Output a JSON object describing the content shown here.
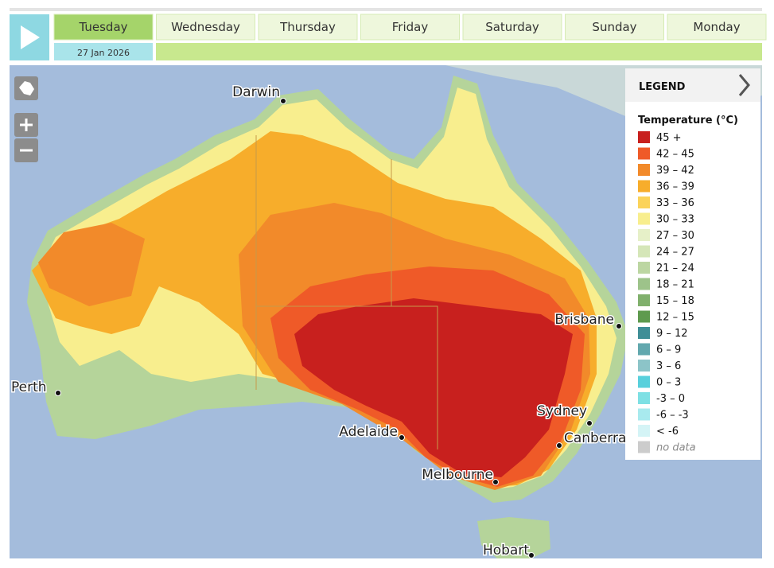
{
  "header": {
    "days": [
      "Tuesday",
      "Wednesday",
      "Thursday",
      "Friday",
      "Saturday",
      "Sunday",
      "Monday"
    ],
    "date": "27 Jan 2026"
  },
  "map": {
    "cities": [
      "Darwin",
      "Brisbane",
      "Perth",
      "Adelaide",
      "Sydney",
      "Canberra",
      "Melbourne",
      "Hobart"
    ]
  },
  "legend": {
    "heading": "LEGEND",
    "title": "Temperature (°C)",
    "items": [
      {
        "label": "45 +",
        "color": "#c8201e"
      },
      {
        "label": "42 – 45",
        "color": "#ef5a28"
      },
      {
        "label": "39 – 42",
        "color": "#f28a2a"
      },
      {
        "label": "36 – 39",
        "color": "#f7ad2b"
      },
      {
        "label": "33 – 36",
        "color": "#fbd35a"
      },
      {
        "label": "30 – 33",
        "color": "#f8ee8e"
      },
      {
        "label": "27 – 30",
        "color": "#e6f0c8"
      },
      {
        "label": "24 – 27",
        "color": "#d5e6b8"
      },
      {
        "label": "21 – 24",
        "color": "#bcd6a2"
      },
      {
        "label": "18 – 21",
        "color": "#9dc38a"
      },
      {
        "label": "15 – 18",
        "color": "#80b06c"
      },
      {
        "label": "12 – 15",
        "color": "#5e9a4e"
      },
      {
        "label": "9 – 12",
        "color": "#3f8e96"
      },
      {
        "label": "6 – 9",
        "color": "#62a8ae"
      },
      {
        "label": "3 – 6",
        "color": "#8cc4c8"
      },
      {
        "label": "0 – 3",
        "color": "#58d0dc"
      },
      {
        "label": "-3 – 0",
        "color": "#7ee0e4"
      },
      {
        "label": "-6 – -3",
        "color": "#a8eaee"
      },
      {
        "label": "< -6",
        "color": "#d4f4f6"
      },
      {
        "label": "no data",
        "color": "#cccccc"
      }
    ]
  }
}
